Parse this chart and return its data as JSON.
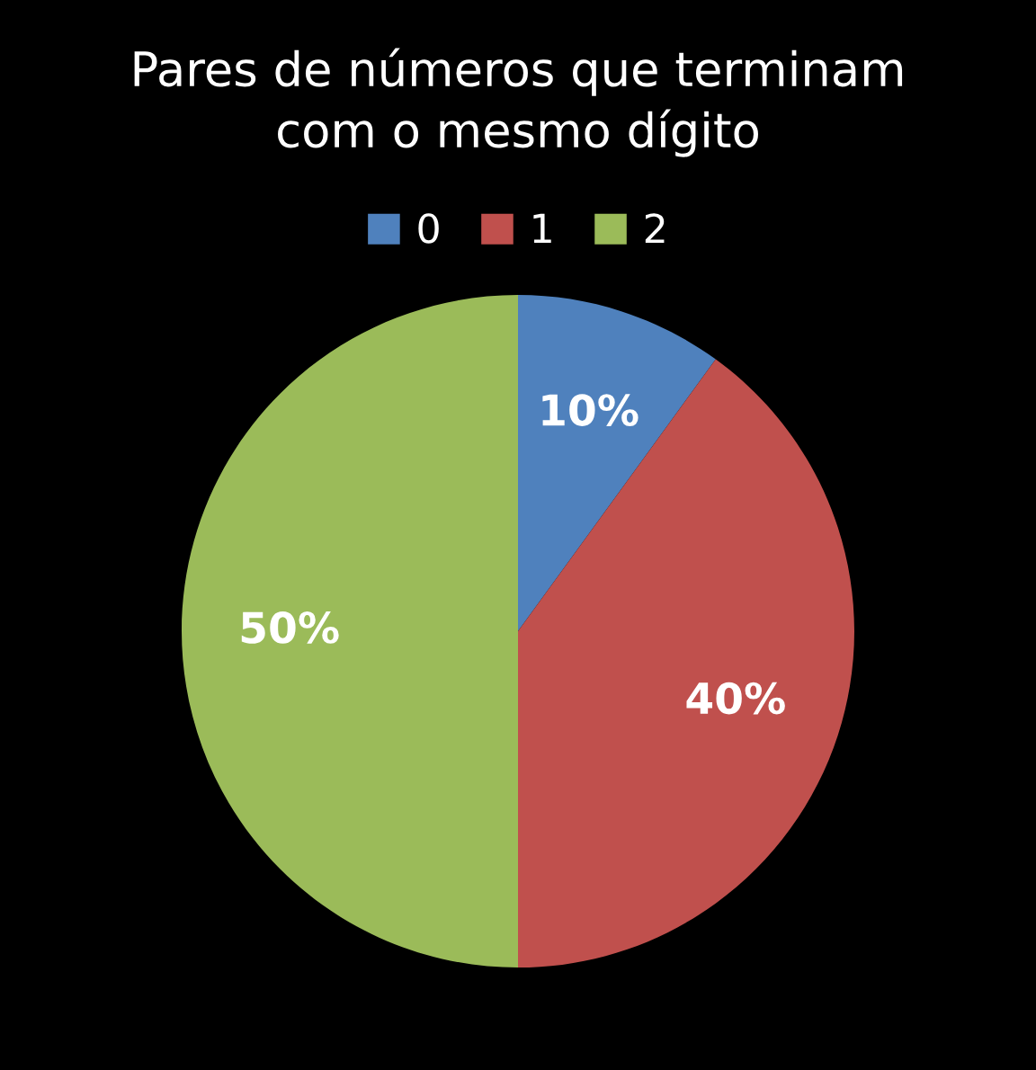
{
  "chart_data": {
    "type": "pie",
    "title": "Pares de números que terminam\ncom o mesmo dígito",
    "categories": [
      "0",
      "1",
      "2"
    ],
    "values": [
      10,
      40,
      50
    ],
    "colors": [
      "#4f81bd",
      "#c0504d",
      "#9bbb59"
    ],
    "value_labels": [
      "10%",
      "40%",
      "50%"
    ],
    "legend": "top"
  }
}
